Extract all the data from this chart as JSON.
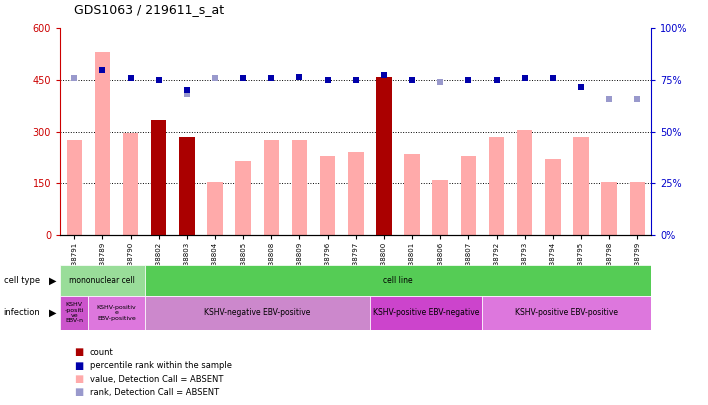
{
  "title": "GDS1063 / 219611_s_at",
  "samples": [
    "GSM38791",
    "GSM38789",
    "GSM38790",
    "GSM38802",
    "GSM38803",
    "GSM38804",
    "GSM38805",
    "GSM38808",
    "GSM38809",
    "GSM38796",
    "GSM38797",
    "GSM38800",
    "GSM38801",
    "GSM38806",
    "GSM38807",
    "GSM38792",
    "GSM38793",
    "GSM38794",
    "GSM38795",
    "GSM38798",
    "GSM38799"
  ],
  "bar_values_pink": [
    275,
    530,
    295,
    0,
    175,
    155,
    215,
    275,
    275,
    230,
    240,
    0,
    235,
    160,
    230,
    285,
    305,
    220,
    285,
    155,
    155
  ],
  "bar_values_red": [
    0,
    0,
    0,
    335,
    285,
    0,
    0,
    0,
    0,
    0,
    0,
    460,
    0,
    0,
    0,
    0,
    0,
    0,
    0,
    0,
    0
  ],
  "percentile_blue_raw": [
    null,
    480,
    455,
    450,
    420,
    null,
    455,
    455,
    460,
    450,
    450,
    465,
    450,
    null,
    450,
    450,
    455,
    455,
    430,
    null,
    null
  ],
  "percentile_lightblue_raw": [
    455,
    null,
    null,
    null,
    410,
    455,
    null,
    null,
    null,
    null,
    null,
    null,
    null,
    445,
    null,
    null,
    null,
    null,
    null,
    395,
    395
  ],
  "ylim_left": [
    0,
    600
  ],
  "ylim_right": [
    0,
    100
  ],
  "yticks_left": [
    0,
    150,
    300,
    450,
    600
  ],
  "yticks_right": [
    0,
    25,
    50,
    75,
    100
  ],
  "ytick_labels_left": [
    "0",
    "150",
    "300",
    "450",
    "600"
  ],
  "ytick_labels_right": [
    "0%",
    "25%",
    "50%",
    "75%",
    "100%"
  ],
  "left_axis_color": "#cc0000",
  "right_axis_color": "#0000cc",
  "pink_bar_color": "#ffaaaa",
  "red_bar_color": "#aa0000",
  "blue_dot_color": "#0000aa",
  "light_blue_dot_color": "#9999cc",
  "cell_type_row": [
    {
      "label": "mononuclear cell",
      "start": 0,
      "end": 3,
      "color": "#99dd99"
    },
    {
      "label": "cell line",
      "start": 3,
      "end": 21,
      "color": "#55cc55"
    }
  ],
  "infection_row": [
    {
      "label": "KSHV\n-positi\nve\nEBV-n",
      "start": 0,
      "end": 1,
      "color": "#cc55cc"
    },
    {
      "label": "KSHV-positiv\ne\nEBV-positive",
      "start": 1,
      "end": 3,
      "color": "#dd77dd"
    },
    {
      "label": "KSHV-negative EBV-positive",
      "start": 3,
      "end": 11,
      "color": "#cc88cc"
    },
    {
      "label": "KSHV-positive EBV-negative",
      "start": 11,
      "end": 15,
      "color": "#cc44cc"
    },
    {
      "label": "KSHV-positive EBV-positive",
      "start": 15,
      "end": 21,
      "color": "#dd77dd"
    }
  ],
  "bar_width": 0.55,
  "dot_size_blue": 25,
  "dot_size_lightblue": 18,
  "gridline_color": "black",
  "gridline_lw": 0.7,
  "gridlines_at": [
    150,
    300,
    450
  ],
  "bg_color": "#ffffff",
  "chart_bg": "#ffffff"
}
